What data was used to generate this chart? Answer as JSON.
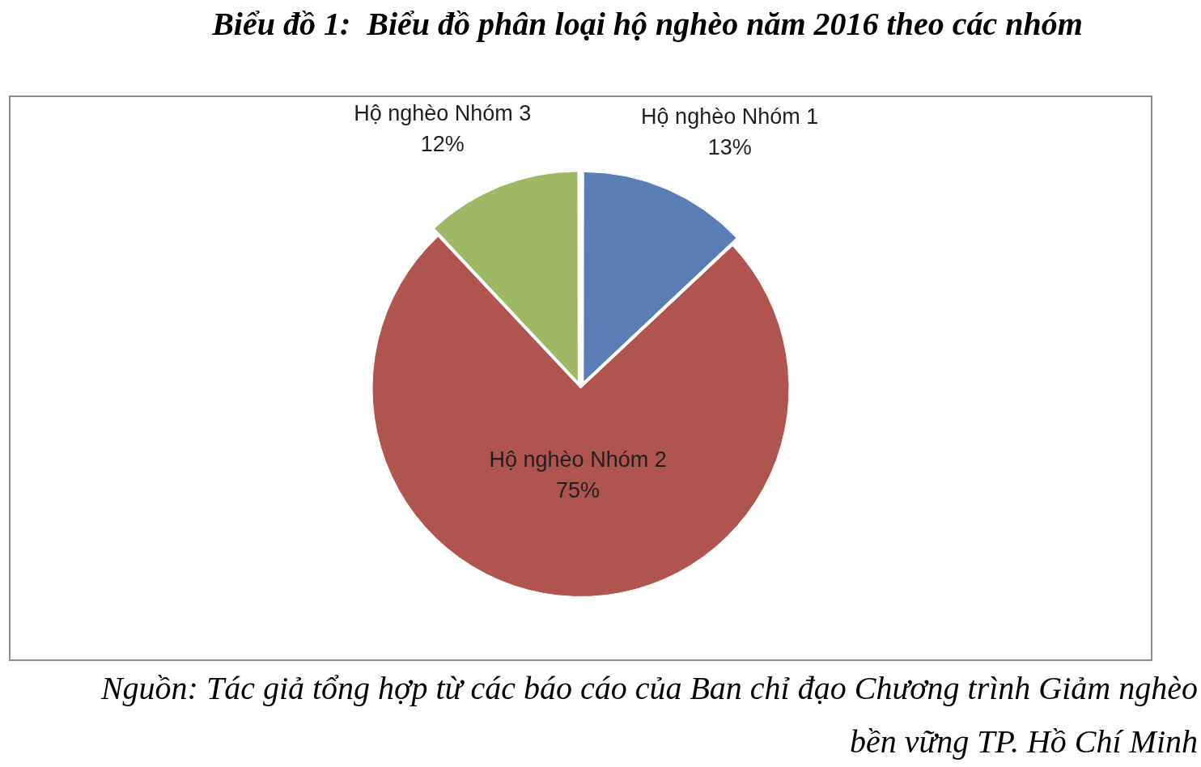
{
  "chart_data": {
    "type": "pie",
    "title": "Biểu đồ 1:  Biểu đồ phân loại hộ nghèo năm 2016 theo các nhóm",
    "categories": [
      "Hộ nghèo Nhóm 1",
      "Hộ nghèo Nhóm 2",
      "Hộ nghèo Nhóm 3"
    ],
    "values": [
      13,
      75,
      12
    ],
    "colors": [
      "#5a7db6",
      "#af544f",
      "#9fb866"
    ],
    "value_labels": [
      "13%",
      "75%",
      "12%"
    ],
    "annotations": [
      "Nguồn: Tác giả tổng hợp từ các báo cáo của Ban chỉ đạo Chương trình Giảm nghèo bền vững TP. Hồ Chí Minh"
    ]
  }
}
